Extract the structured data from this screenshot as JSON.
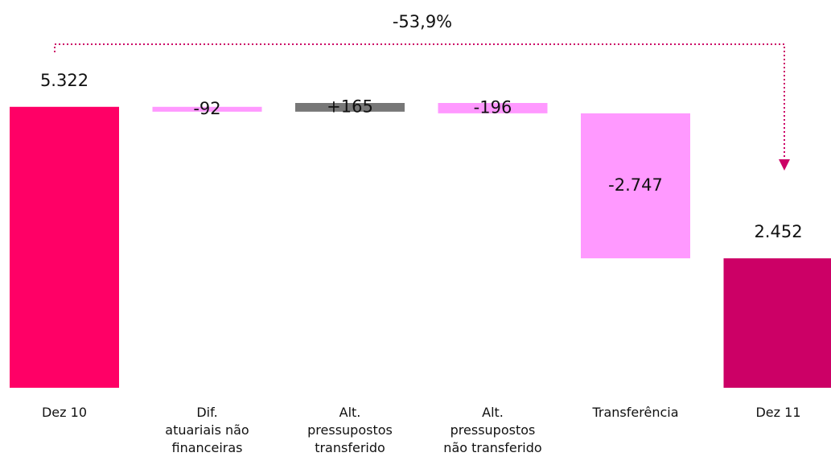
{
  "chart_data": {
    "type": "waterfall",
    "categories": [
      "Dez 10",
      "Dif.\natuariais não\nfinanceiras",
      "Alt.\npressupostos\ntransferido",
      "Alt.\npressupostos\nnão transferido",
      "Transferência",
      "Dez 11"
    ],
    "values": [
      5322,
      -92,
      165,
      -196,
      -2747,
      2452
    ],
    "value_labels": [
      "5.322",
      "-92",
      "+165",
      "-196",
      "-2.747",
      "2.452"
    ],
    "colors": [
      "#ff0066",
      "#ff99ff",
      "#777777",
      "#ff99ff",
      "#ff99ff",
      "#cc0066"
    ],
    "annotation": "-53,9%"
  }
}
